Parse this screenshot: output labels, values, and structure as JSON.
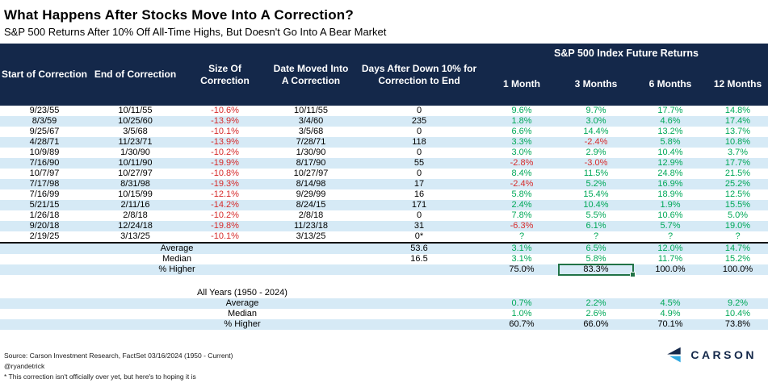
{
  "title": "What Happens After Stocks Move Into A Correction?",
  "subtitle": "S&P 500 Returns After 10% Off All-Time Highs, But Doesn't Go Into A Bear Market",
  "chart_data": {
    "type": "table",
    "group_header": "S&P 500 Index Future Returns",
    "columns": [
      "Start of Correction",
      "End of Correction",
      "Size Of Correction",
      "Date Moved Into A Correction",
      "Days After Down 10% for Correction to End",
      "1 Month",
      "3 Months",
      "6 Months",
      "12 Months"
    ],
    "rows": [
      [
        "9/23/55",
        "10/11/55",
        "-10.6%",
        "10/11/55",
        "0",
        "9.6%",
        "9.7%",
        "17.7%",
        "14.8%"
      ],
      [
        "8/3/59",
        "10/25/60",
        "-13.9%",
        "3/4/60",
        "235",
        "1.8%",
        "3.0%",
        "4.6%",
        "17.4%"
      ],
      [
        "9/25/67",
        "3/5/68",
        "-10.1%",
        "3/5/68",
        "0",
        "6.6%",
        "14.4%",
        "13.2%",
        "13.7%"
      ],
      [
        "4/28/71",
        "11/23/71",
        "-13.9%",
        "7/28/71",
        "118",
        "3.3%",
        "-2.4%",
        "5.8%",
        "10.8%"
      ],
      [
        "10/9/89",
        "1/30/90",
        "-10.2%",
        "1/30/90",
        "0",
        "3.0%",
        "2.9%",
        "10.4%",
        "3.7%"
      ],
      [
        "7/16/90",
        "10/11/90",
        "-19.9%",
        "8/17/90",
        "55",
        "-2.8%",
        "-3.0%",
        "12.9%",
        "17.7%"
      ],
      [
        "10/7/97",
        "10/27/97",
        "-10.8%",
        "10/27/97",
        "0",
        "8.4%",
        "11.5%",
        "24.8%",
        "21.5%"
      ],
      [
        "7/17/98",
        "8/31/98",
        "-19.3%",
        "8/14/98",
        "17",
        "-2.4%",
        "5.2%",
        "16.9%",
        "25.2%"
      ],
      [
        "7/16/99",
        "10/15/99",
        "-12.1%",
        "9/29/99",
        "16",
        "5.8%",
        "15.4%",
        "18.9%",
        "12.5%"
      ],
      [
        "5/21/15",
        "2/11/16",
        "-14.2%",
        "8/24/15",
        "171",
        "2.4%",
        "10.4%",
        "1.9%",
        "15.5%"
      ],
      [
        "1/26/18",
        "2/8/18",
        "-10.2%",
        "2/8/18",
        "0",
        "7.8%",
        "5.5%",
        "10.6%",
        "5.0%"
      ],
      [
        "9/20/18",
        "12/24/18",
        "-19.8%",
        "11/23/18",
        "31",
        "-6.3%",
        "6.1%",
        "5.7%",
        "19.0%"
      ],
      [
        "2/19/25",
        "3/13/25",
        "-10.1%",
        "3/13/25",
        "0*",
        "?",
        "?",
        "?",
        "?"
      ]
    ],
    "summary_rows": [
      {
        "label": "Average",
        "days": "53.6",
        "returns": [
          "3.1%",
          "6.5%",
          "12.0%",
          "14.7%"
        ],
        "value_color": "green"
      },
      {
        "label": "Median",
        "days": "16.5",
        "returns": [
          "3.1%",
          "5.8%",
          "11.7%",
          "15.2%"
        ],
        "value_color": "green"
      },
      {
        "label": "% Higher",
        "days": "",
        "returns": [
          "75.0%",
          "83.3%",
          "100.0%",
          "100.0%"
        ],
        "value_color": "black",
        "selected_return_index": 1
      }
    ],
    "all_years": {
      "section_label": "All Years (1950 - 2024)",
      "rows": [
        {
          "label": "Average",
          "returns": [
            "0.7%",
            "2.2%",
            "4.5%",
            "9.2%"
          ],
          "value_color": "green"
        },
        {
          "label": "Median",
          "returns": [
            "1.0%",
            "2.6%",
            "4.9%",
            "10.4%"
          ],
          "value_color": "green"
        },
        {
          "label": "% Higher",
          "returns": [
            "60.7%",
            "66.0%",
            "70.1%",
            "73.8%"
          ],
          "value_color": "black"
        }
      ]
    }
  },
  "footer": {
    "source": "Source: Carson Investment Research, FactSet 03/16/2024 (1950 - Current)",
    "handle": "@ryandetrick",
    "note": "* This correction isn't officially over yet, but here's to hoping it is"
  },
  "logo": {
    "text": "CARSON"
  },
  "colors": {
    "navy": "#14284A",
    "stripe": "#D6EAF6",
    "green": "#00A859",
    "red": "#D62B2B",
    "selection": "#217346",
    "logo_blue": "#2FA8E1"
  }
}
